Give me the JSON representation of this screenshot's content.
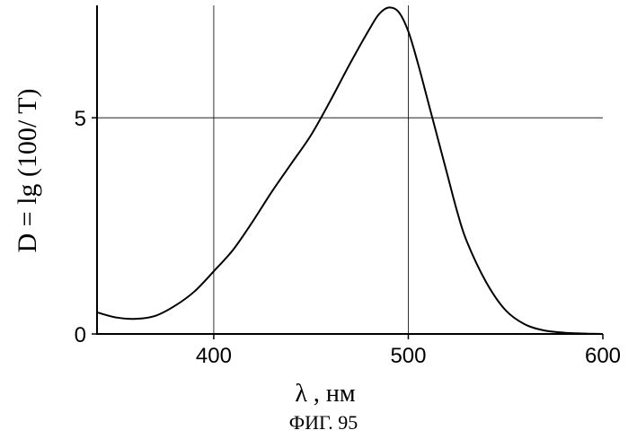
{
  "chart_data": {
    "type": "line",
    "title": "",
    "xlabel": "λ , нм",
    "ylabel": "D = lg (100/ T)",
    "xlim": [
      340,
      600
    ],
    "ylim": [
      0,
      7.6
    ],
    "xticks": [
      400,
      500,
      600
    ],
    "yticks": [
      0,
      5
    ],
    "grid": true,
    "series": [
      {
        "x": [
          340,
          350,
          360,
          370,
          380,
          390,
          400,
          410,
          420,
          430,
          440,
          450,
          460,
          470,
          480,
          485,
          490,
          495,
          500,
          505,
          510,
          515,
          520,
          525,
          530,
          540,
          550,
          560,
          570,
          580,
          590,
          600
        ],
        "y": [
          0.5,
          0.38,
          0.35,
          0.42,
          0.65,
          0.98,
          1.45,
          1.95,
          2.6,
          3.3,
          3.95,
          4.6,
          5.4,
          6.25,
          7.05,
          7.4,
          7.55,
          7.45,
          7.0,
          6.25,
          5.4,
          4.55,
          3.7,
          2.85,
          2.15,
          1.2,
          0.55,
          0.22,
          0.08,
          0.03,
          0.01,
          0.0
        ]
      }
    ]
  },
  "figure_caption": "ФИГ. 95"
}
